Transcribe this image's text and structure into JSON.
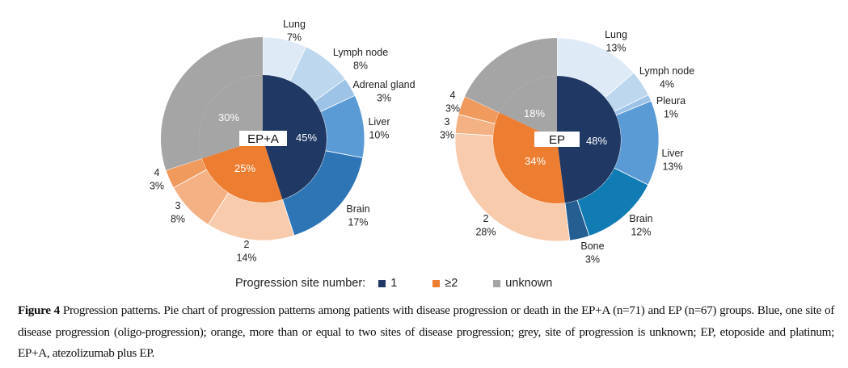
{
  "chart_data": [
    {
      "type": "pie",
      "subtype": "nested-donut",
      "center_label": "EP+A",
      "inner": [
        {
          "name": "1",
          "value": 45,
          "label": "45%",
          "color": "#1f3864"
        },
        {
          "name": "≥2",
          "value": 25,
          "label": "25%",
          "color": "#ed7d31"
        },
        {
          "name": "unknown",
          "value": 30,
          "label": "30%",
          "color": "#a5a5a5"
        }
      ],
      "outer": [
        {
          "group": "1",
          "name": "Lung",
          "value": 7,
          "label": "7%",
          "color": "#deebf7"
        },
        {
          "group": "1",
          "name": "Lymph node",
          "value": 8,
          "label": "8%",
          "color": "#bdd7ee"
        },
        {
          "group": "1",
          "name": "Adrenal gland",
          "value": 3,
          "label": "3%",
          "color": "#9dc3e6"
        },
        {
          "group": "1",
          "name": "Liver",
          "value": 10,
          "label": "10%",
          "color": "#5b9bd5"
        },
        {
          "group": "1",
          "name": "Brain",
          "value": 17,
          "label": "17%",
          "color": "#2e75b6"
        },
        {
          "group": "≥2",
          "name": "2",
          "value": 14,
          "label": "14%",
          "color": "#f8cbad"
        },
        {
          "group": "≥2",
          "name": "3",
          "value": 8,
          "label": "8%",
          "color": "#f4b183"
        },
        {
          "group": "≥2",
          "name": "4",
          "value": 3,
          "label": "3%",
          "color": "#f09a5e"
        }
      ]
    },
    {
      "type": "pie",
      "subtype": "nested-donut",
      "center_label": "EP",
      "inner": [
        {
          "name": "1",
          "value": 48,
          "label": "48%",
          "color": "#1f3864"
        },
        {
          "name": "≥2",
          "value": 34,
          "label": "34%",
          "color": "#ed7d31"
        },
        {
          "name": "unknown",
          "value": 18,
          "label": "18%",
          "color": "#a5a5a5"
        }
      ],
      "outer": [
        {
          "group": "1",
          "name": "Lung",
          "value": 13,
          "label": "13%",
          "color": "#deebf7"
        },
        {
          "group": "1",
          "name": "Lymph node",
          "value": 4,
          "label": "4%",
          "color": "#bdd7ee"
        },
        {
          "group": "1",
          "name": "Pleura",
          "value": 1,
          "label": "1%",
          "color": "#9dc3e6"
        },
        {
          "group": "1",
          "name": "Liver",
          "value": 13,
          "label": "13%",
          "color": "#5b9bd5"
        },
        {
          "group": "1",
          "name": "Brain",
          "value": 12,
          "label": "12%",
          "color": "#117cb4"
        },
        {
          "group": "1",
          "name": "Bone",
          "value": 3,
          "label": "3%",
          "color": "#255e91"
        },
        {
          "group": "≥2",
          "name": "2",
          "value": 28,
          "label": "28%",
          "color": "#f8cbad"
        },
        {
          "group": "≥2",
          "name": "3",
          "value": 3,
          "label": "3%",
          "color": "#f4b183"
        },
        {
          "group": "≥2",
          "name": "4",
          "value": 3,
          "label": "3%",
          "color": "#f09a5e"
        }
      ]
    }
  ],
  "legend": {
    "title": "Progression site number:",
    "items": [
      {
        "label": "1",
        "color": "#1f3864"
      },
      {
        "label": "≥2",
        "color": "#ed7d31"
      },
      {
        "label": "unknown",
        "color": "#a5a5a5"
      }
    ]
  },
  "caption": {
    "figure_label": "Figure 4",
    "text": " Progression patterns. Pie chart of progression patterns among patients with disease progression or death in the EP+A (n=71) and EP (n=67) groups. Blue, one site of disease progression (oligo-progression); orange, more than or equal to two sites of disease progression; grey, site of progression is unknown; EP, etoposide and platinum; EP+A, atezolizumab plus EP."
  }
}
